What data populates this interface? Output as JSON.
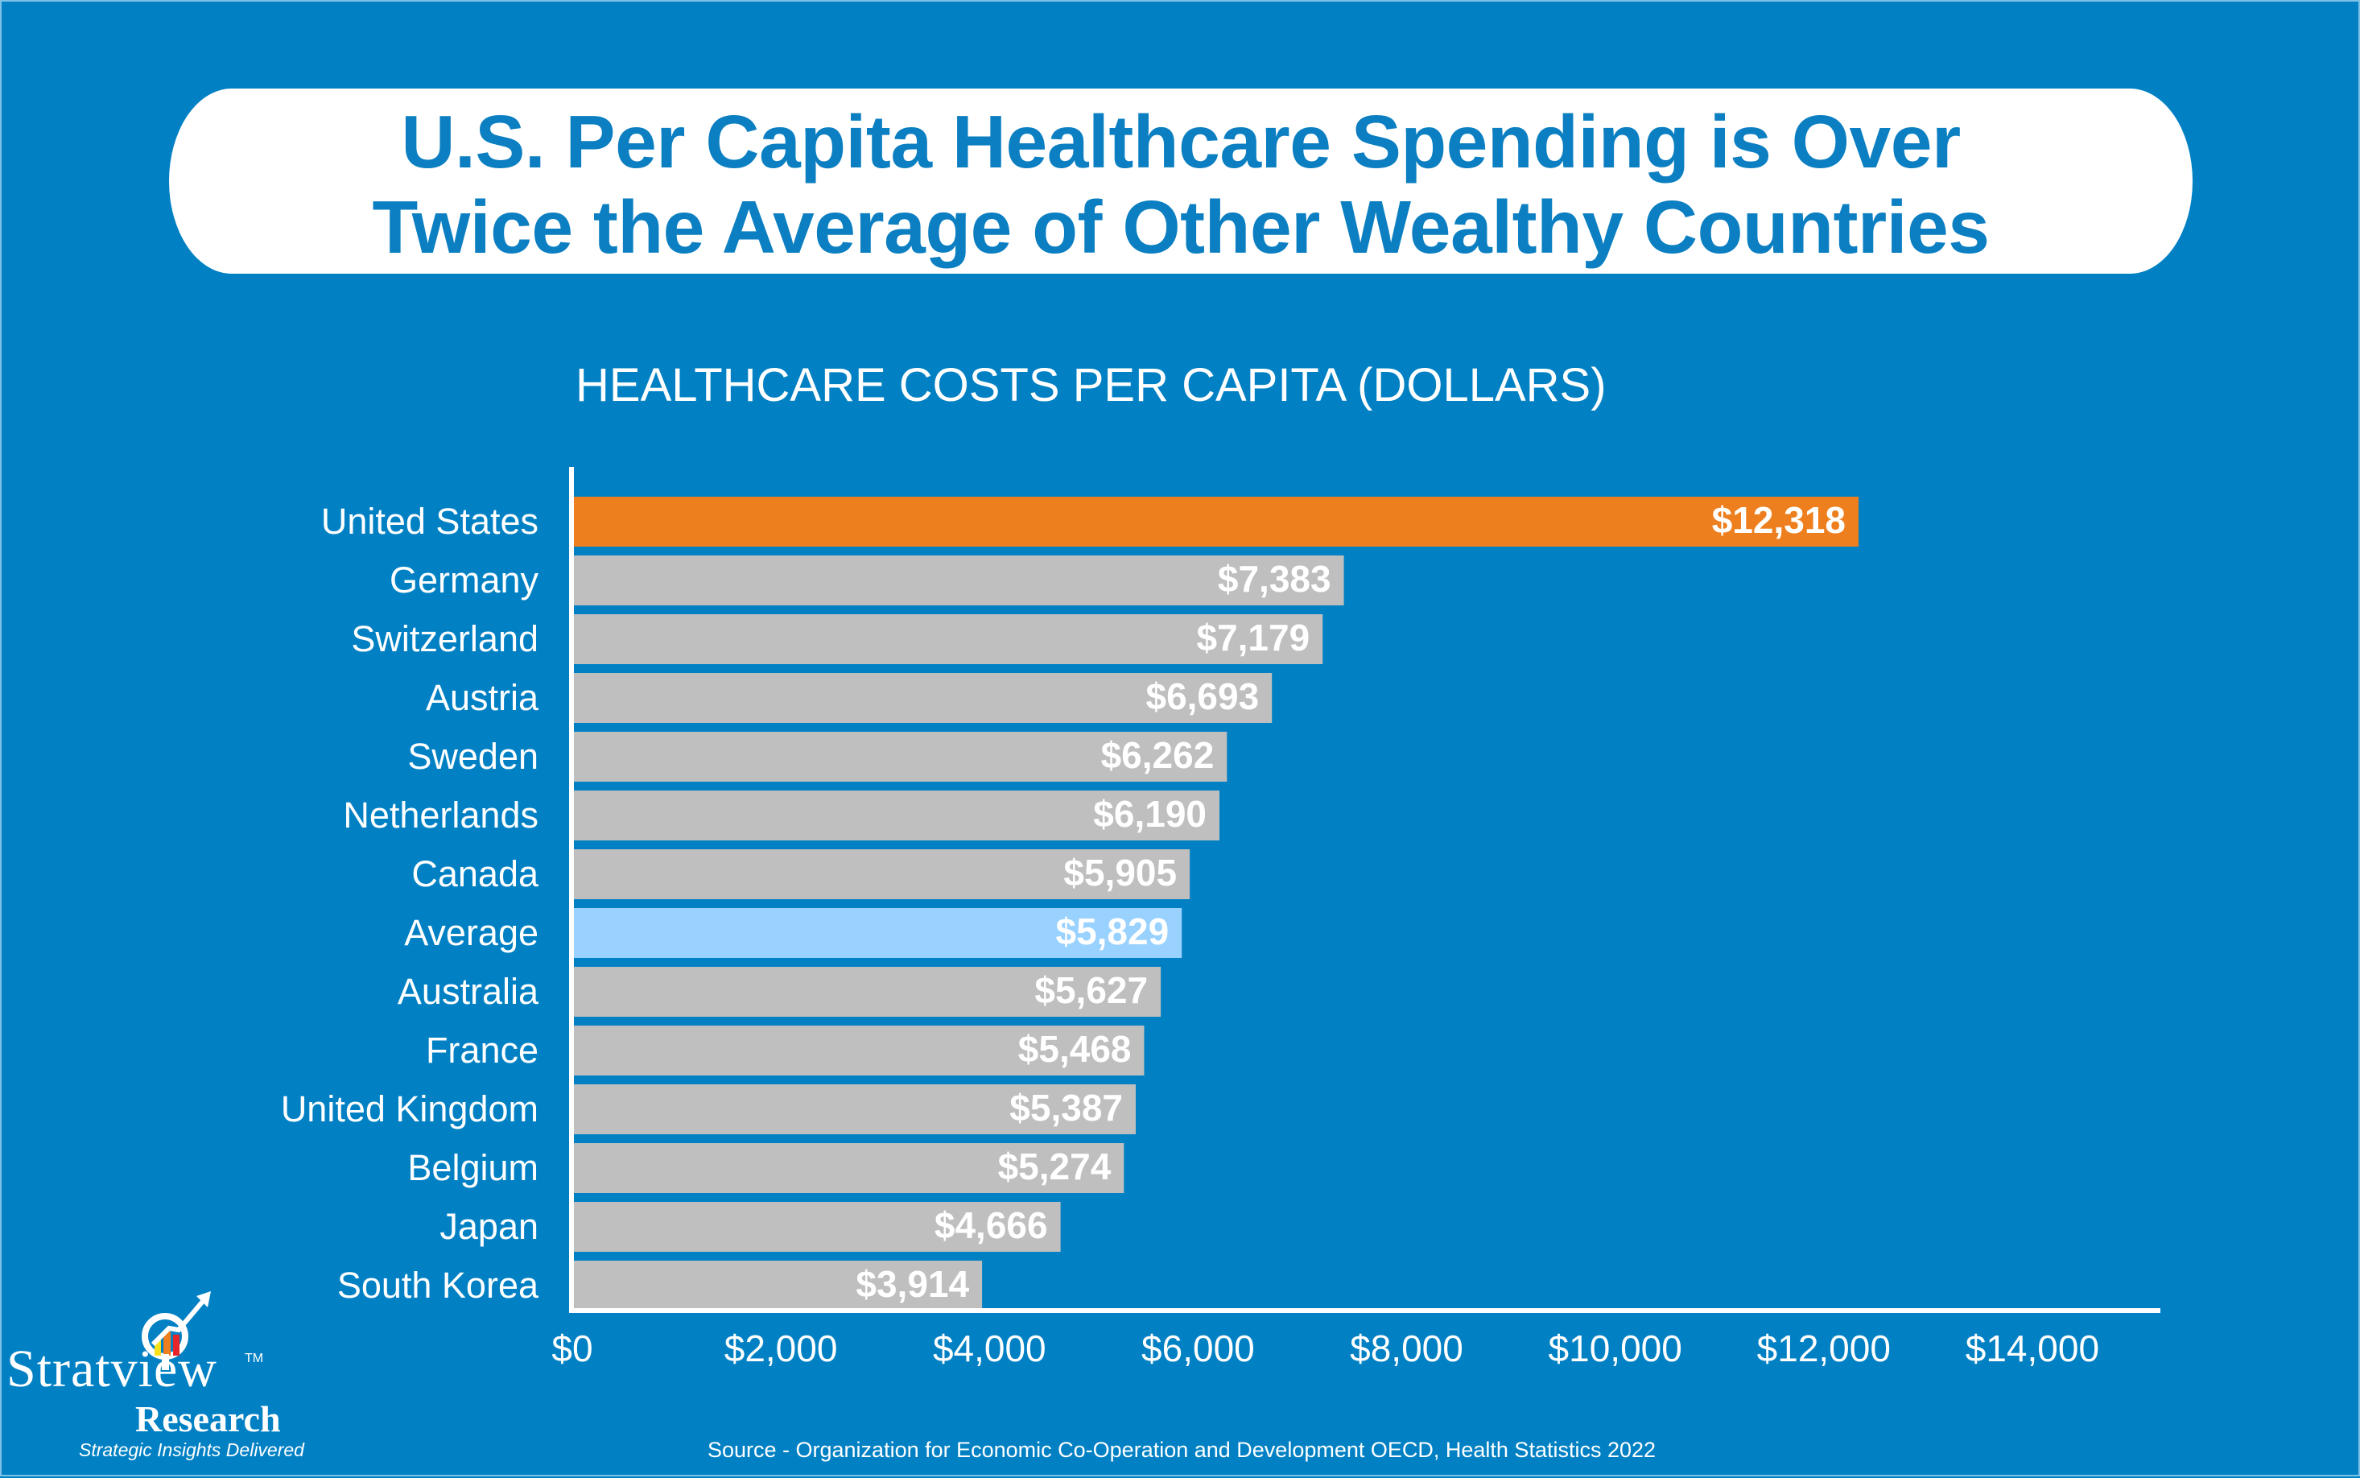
{
  "title": {
    "line1": "U.S. Per Capita Healthcare Spending is Over",
    "line2": "Twice the Average of Other Wealthy Countries"
  },
  "colors": {
    "background": "#0181C4",
    "title_text": "#0B7FC1",
    "highlight_us": "#EE7F1E",
    "average": "#99D1FF",
    "other": "#BFBFBF"
  },
  "chart_data": {
    "type": "bar",
    "orientation": "horizontal",
    "title": "HEALTHCARE COSTS PER CAPITA (DOLLARS)",
    "xlabel": "",
    "ylabel": "",
    "categories": [
      "United States",
      "Germany",
      "Switzerland",
      "Austria",
      "Sweden",
      "Netherlands",
      "Canada",
      "Average",
      "Australia",
      "France",
      "United Kingdom",
      "Belgium",
      "Japan",
      "South Korea"
    ],
    "values": [
      12318,
      7383,
      7179,
      6693,
      6262,
      6190,
      5905,
      5829,
      5627,
      5468,
      5387,
      5274,
      4666,
      3914
    ],
    "value_labels": [
      "$12,318",
      "$7,383",
      "$7,179",
      "$6,693",
      "$6,262",
      "$6,190",
      "$5,905",
      "$5,829",
      "$5,627",
      "$5,468",
      "$5,387",
      "$5,274",
      "$4,666",
      "$3,914"
    ],
    "bar_kinds": [
      "highlight",
      "other",
      "other",
      "other",
      "other",
      "other",
      "other",
      "average",
      "other",
      "other",
      "other",
      "other",
      "other",
      "other"
    ],
    "xlim": [
      0,
      15300
    ],
    "xticks": [
      0,
      2000,
      4000,
      6000,
      8000,
      10000,
      12000,
      14000
    ],
    "xtick_labels": [
      "$0",
      "$2,000",
      "$4,000",
      "$6,000",
      "$8,000",
      "$10,000",
      "$12,000",
      "$14,000"
    ],
    "grid": false,
    "legend": "none"
  },
  "source": "Source - Organization for Economic Co-Operation and Development OECD, Health Statistics 2022",
  "logo": {
    "name": "Stratview",
    "tm": "TM",
    "sub": "Research",
    "tagline": "Strategic Insights Delivered"
  }
}
